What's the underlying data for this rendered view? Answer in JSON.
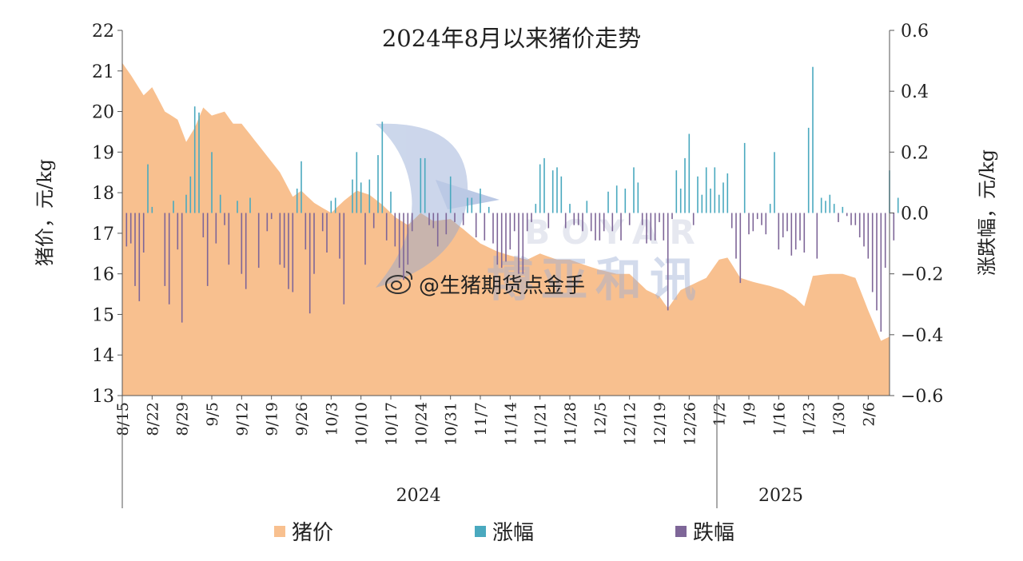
{
  "chart_data": {
    "type": "area+bar",
    "title": "2024年8月以来猪价走势",
    "ylabel_left": "猪价，元/kg",
    "ylabel_right": "涨跌幅，元/kg",
    "ylim_left": [
      13,
      22
    ],
    "ylim_right": [
      -0.6,
      0.6
    ],
    "yticks_left": [
      "13",
      "14",
      "15",
      "16",
      "17",
      "18",
      "19",
      "20",
      "21",
      "22"
    ],
    "yticks_right": [
      "−0.6",
      "−0.4",
      "−0.2",
      "0.0",
      "0.2",
      "0.4",
      "0.6"
    ],
    "x_tick_labels": [
      "8/15",
      "8/22",
      "8/29",
      "9/5",
      "9/12",
      "9/19",
      "9/26",
      "10/3",
      "10/10",
      "10/17",
      "10/24",
      "10/31",
      "11/7",
      "11/14",
      "11/21",
      "11/28",
      "12/5",
      "12/12",
      "12/19",
      "12/26",
      "1/2",
      "1/9",
      "1/16",
      "1/23",
      "1/30",
      "2/6"
    ],
    "year_groups": [
      {
        "label": "2024",
        "start": 0,
        "end": 139
      },
      {
        "label": "2025",
        "start": 140,
        "end": 169
      }
    ],
    "legend": [
      "猪价",
      "涨幅",
      "跌幅"
    ],
    "legend_placement": "bottom",
    "colors": {
      "price": "#f8c08f",
      "rise": "#4aa9bf",
      "fall": "#7e6698"
    },
    "start_date": "8/15",
    "num_days": 181,
    "price_keypoints": [
      [
        "8/15",
        21.2
      ],
      [
        "8/17",
        20.9
      ],
      [
        "8/20",
        20.4
      ],
      [
        "8/22",
        20.6
      ],
      [
        "8/25",
        20.0
      ],
      [
        "8/28",
        19.8
      ],
      [
        "8/30",
        19.25
      ],
      [
        "9/1",
        19.6
      ],
      [
        "9/3",
        20.1
      ],
      [
        "9/5",
        19.9
      ],
      [
        "9/8",
        20.0
      ],
      [
        "9/10",
        19.7
      ],
      [
        "9/12",
        19.7
      ],
      [
        "9/15",
        19.3
      ],
      [
        "9/18",
        18.9
      ],
      [
        "9/21",
        18.5
      ],
      [
        "9/24",
        17.9
      ],
      [
        "9/26",
        18.05
      ],
      [
        "9/29",
        17.75
      ],
      [
        "10/3",
        17.5
      ],
      [
        "10/6",
        17.8
      ],
      [
        "10/9",
        18.05
      ],
      [
        "10/12",
        17.95
      ],
      [
        "10/15",
        17.7
      ],
      [
        "10/18",
        17.4
      ],
      [
        "10/21",
        17.2
      ],
      [
        "10/24",
        17.5
      ],
      [
        "10/27",
        17.3
      ],
      [
        "10/31",
        17.35
      ],
      [
        "11/3",
        17.1
      ],
      [
        "11/7",
        16.75
      ],
      [
        "11/11",
        16.55
      ],
      [
        "11/14",
        16.45
      ],
      [
        "11/18",
        16.35
      ],
      [
        "11/21",
        16.5
      ],
      [
        "11/25",
        16.35
      ],
      [
        "11/28",
        16.35
      ],
      [
        "12/2",
        16.2
      ],
      [
        "12/5",
        16.1
      ],
      [
        "12/9",
        16.0
      ],
      [
        "12/12",
        16.0
      ],
      [
        "12/16",
        15.6
      ],
      [
        "12/19",
        15.45
      ],
      [
        "12/21",
        15.15
      ],
      [
        "12/24",
        15.6
      ],
      [
        "12/27",
        15.75
      ],
      [
        "12/30",
        15.9
      ],
      [
        "1/2",
        16.35
      ],
      [
        "1/4",
        16.4
      ],
      [
        "1/7",
        15.9
      ],
      [
        "1/10",
        15.8
      ],
      [
        "1/14",
        15.7
      ],
      [
        "1/17",
        15.6
      ],
      [
        "1/20",
        15.4
      ],
      [
        "1/22",
        15.2
      ],
      [
        "1/24",
        15.95
      ],
      [
        "1/28",
        16.0
      ],
      [
        "1/31",
        16.0
      ],
      [
        "2/3",
        15.9
      ],
      [
        "2/6",
        15.1
      ],
      [
        "2/9",
        14.35
      ],
      [
        "2/11",
        14.45
      ],
      [
        "2/13",
        14.4
      ]
    ],
    "change_bars": [
      [
        "8/16",
        -0.11
      ],
      [
        "8/17",
        -0.1
      ],
      [
        "8/18",
        -0.24
      ],
      [
        "8/19",
        -0.29
      ],
      [
        "8/20",
        -0.13
      ],
      [
        "8/21",
        0.16
      ],
      [
        "8/22",
        0.02
      ],
      [
        "8/25",
        -0.24
      ],
      [
        "8/26",
        -0.3
      ],
      [
        "8/27",
        0.04
      ],
      [
        "8/28",
        -0.12
      ],
      [
        "8/29",
        -0.36
      ],
      [
        "8/30",
        0.06
      ],
      [
        "8/31",
        0.12
      ],
      [
        "9/1",
        0.35
      ],
      [
        "9/2",
        0.33
      ],
      [
        "9/3",
        -0.08
      ],
      [
        "9/4",
        -0.24
      ],
      [
        "9/5",
        0.2
      ],
      [
        "9/6",
        -0.1
      ],
      [
        "9/7",
        0.06
      ],
      [
        "9/8",
        -0.04
      ],
      [
        "9/9",
        -0.17
      ],
      [
        "9/11",
        0.04
      ],
      [
        "9/12",
        -0.2
      ],
      [
        "9/13",
        -0.25
      ],
      [
        "9/14",
        0.05
      ],
      [
        "9/16",
        -0.18
      ],
      [
        "9/18",
        -0.06
      ],
      [
        "9/19",
        -0.02
      ],
      [
        "9/21",
        -0.17
      ],
      [
        "9/22",
        -0.18
      ],
      [
        "9/23",
        -0.25
      ],
      [
        "9/24",
        -0.26
      ],
      [
        "9/25",
        0.08
      ],
      [
        "9/26",
        0.17
      ],
      [
        "9/27",
        -0.12
      ],
      [
        "9/28",
        -0.33
      ],
      [
        "9/29",
        -0.2
      ],
      [
        "10/1",
        -0.06
      ],
      [
        "10/2",
        -0.13
      ],
      [
        "10/3",
        0.04
      ],
      [
        "10/4",
        0.05
      ],
      [
        "10/5",
        -0.15
      ],
      [
        "10/6",
        -0.3
      ],
      [
        "10/8",
        0.11
      ],
      [
        "10/9",
        0.2
      ],
      [
        "10/10",
        0.1
      ],
      [
        "10/11",
        -0.17
      ],
      [
        "10/12",
        0.11
      ],
      [
        "10/13",
        -0.05
      ],
      [
        "10/14",
        0.19
      ],
      [
        "10/15",
        0.3
      ],
      [
        "10/16",
        -0.09
      ],
      [
        "10/17",
        0.07
      ],
      [
        "10/18",
        -0.11
      ],
      [
        "10/19",
        -0.18
      ],
      [
        "10/20",
        -0.22
      ],
      [
        "10/21",
        -0.17
      ],
      [
        "10/22",
        -0.06
      ],
      [
        "10/24",
        0.18
      ],
      [
        "10/25",
        0.18
      ],
      [
        "10/26",
        -0.04
      ],
      [
        "10/27",
        -0.05
      ],
      [
        "10/28",
        -0.11
      ],
      [
        "10/30",
        -0.07
      ],
      [
        "10/31",
        0.12
      ],
      [
        "11/1",
        -0.03
      ],
      [
        "11/3",
        -0.04
      ],
      [
        "11/4",
        0.05
      ],
      [
        "11/5",
        0.05
      ],
      [
        "11/6",
        -0.08
      ],
      [
        "11/7",
        0.08
      ],
      [
        "11/8",
        -0.09
      ],
      [
        "11/9",
        0.02
      ],
      [
        "11/10",
        -0.1
      ],
      [
        "11/11",
        -0.17
      ],
      [
        "11/12",
        -0.18
      ],
      [
        "11/13",
        -0.16
      ],
      [
        "11/14",
        -0.12
      ],
      [
        "11/15",
        -0.06
      ],
      [
        "11/16",
        -0.2
      ],
      [
        "11/17",
        -0.2
      ],
      [
        "11/18",
        -0.06
      ],
      [
        "11/19",
        -0.03
      ],
      [
        "11/20",
        0.03
      ],
      [
        "11/21",
        0.16
      ],
      [
        "11/22",
        0.18
      ],
      [
        "11/23",
        -0.05
      ],
      [
        "11/24",
        0.14
      ],
      [
        "11/25",
        0.15
      ],
      [
        "11/26",
        0.12
      ],
      [
        "11/27",
        -0.05
      ],
      [
        "11/28",
        0.03
      ],
      [
        "11/29",
        -0.04
      ],
      [
        "11/30",
        -0.04
      ],
      [
        "12/1",
        -0.06
      ],
      [
        "12/2",
        0.04
      ],
      [
        "12/3",
        -0.06
      ],
      [
        "12/4",
        -0.09
      ],
      [
        "12/5",
        -0.09
      ],
      [
        "12/6",
        -0.06
      ],
      [
        "12/7",
        0.07
      ],
      [
        "12/8",
        -0.06
      ],
      [
        "12/9",
        0.09
      ],
      [
        "12/10",
        -0.09
      ],
      [
        "12/11",
        0.08
      ],
      [
        "12/12",
        -0.04
      ],
      [
        "12/13",
        0.15
      ],
      [
        "12/14",
        0.1
      ],
      [
        "12/15",
        -0.04
      ],
      [
        "12/16",
        -0.1
      ],
      [
        "12/17",
        -0.09
      ],
      [
        "12/18",
        -0.09
      ],
      [
        "12/19",
        -0.03
      ],
      [
        "12/20",
        -0.09
      ],
      [
        "12/21",
        -0.32
      ],
      [
        "12/22",
        -0.02
      ],
      [
        "12/23",
        0.14
      ],
      [
        "12/24",
        0.08
      ],
      [
        "12/25",
        0.18
      ],
      [
        "12/26",
        0.26
      ],
      [
        "12/27",
        -0.04
      ],
      [
        "12/28",
        0.12
      ],
      [
        "12/29",
        0.06
      ],
      [
        "12/30",
        0.15
      ],
      [
        "12/31",
        0.08
      ],
      [
        "1/1",
        0.15
      ],
      [
        "1/2",
        0.06
      ],
      [
        "1/3",
        0.1
      ],
      [
        "1/4",
        0.13
      ],
      [
        "1/5",
        -0.05
      ],
      [
        "1/6",
        -0.15
      ],
      [
        "1/7",
        -0.23
      ],
      [
        "1/8",
        0.23
      ],
      [
        "1/9",
        -0.07
      ],
      [
        "1/10",
        -0.06
      ],
      [
        "1/11",
        -0.02
      ],
      [
        "1/12",
        -0.04
      ],
      [
        "1/13",
        -0.07
      ],
      [
        "1/14",
        0.03
      ],
      [
        "1/15",
        0.2
      ],
      [
        "1/16",
        -0.12
      ],
      [
        "1/17",
        -0.08
      ],
      [
        "1/18",
        -0.06
      ],
      [
        "1/19",
        -0.14
      ],
      [
        "1/20",
        -0.12
      ],
      [
        "1/21",
        -0.09
      ],
      [
        "1/22",
        -0.13
      ],
      [
        "1/23",
        0.28
      ],
      [
        "1/24",
        0.48
      ],
      [
        "1/25",
        -0.15
      ],
      [
        "1/26",
        0.05
      ],
      [
        "1/27",
        0.04
      ],
      [
        "1/28",
        0.06
      ],
      [
        "1/29",
        0.03
      ],
      [
        "1/30",
        -0.03
      ],
      [
        "1/31",
        0.02
      ],
      [
        "2/1",
        -0.01
      ],
      [
        "2/2",
        -0.04
      ],
      [
        "2/3",
        -0.04
      ],
      [
        "2/4",
        -0.08
      ],
      [
        "2/5",
        -0.11
      ],
      [
        "2/6",
        -0.15
      ],
      [
        "2/7",
        -0.26
      ],
      [
        "2/8",
        -0.32
      ],
      [
        "2/9",
        -0.39
      ],
      [
        "2/10",
        -0.18
      ],
      [
        "2/11",
        0.14
      ],
      [
        "2/12",
        -0.09
      ],
      [
        "2/13",
        0.05
      ]
    ]
  },
  "watermark": {
    "brand": "BOYAR",
    "cn": "博亚和讯",
    "handle": "@生猪期货点金手"
  }
}
